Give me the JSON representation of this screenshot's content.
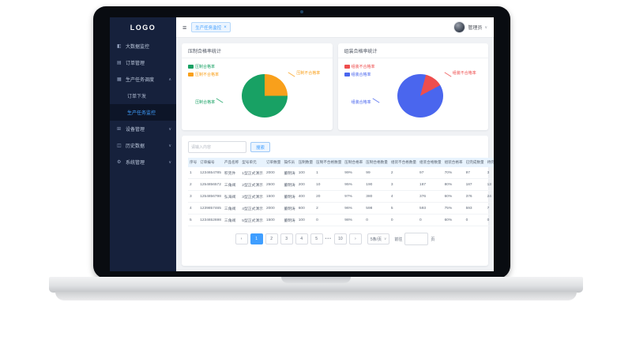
{
  "sidebar": {
    "logo": "LOGO",
    "items": [
      {
        "id": "bigdata",
        "label": "大数据监控",
        "icon": "monitor-icon"
      },
      {
        "id": "orders",
        "label": "订单管理",
        "icon": "order-icon"
      },
      {
        "id": "production-schedule",
        "label": "生产任务调度",
        "icon": "task-icon",
        "chevron": "up"
      },
      {
        "id": "order-dispatch",
        "label": "订单下发",
        "sub": true
      },
      {
        "id": "task-monitor",
        "label": "生产任务监控",
        "sub": true,
        "active": true
      },
      {
        "id": "device",
        "label": "设备管理",
        "icon": "device-icon",
        "chevron": "down"
      },
      {
        "id": "history",
        "label": "历史数据",
        "icon": "history-icon",
        "chevron": "down"
      },
      {
        "id": "system",
        "label": "系统管理",
        "icon": "system-icon",
        "chevron": "down"
      }
    ]
  },
  "icons": {
    "monitor-icon": "◧",
    "order-icon": "▤",
    "task-icon": "▦",
    "device-icon": "⊞",
    "history-icon": "◫",
    "system-icon": "⚙",
    "hamburger-icon": "≡",
    "chevron-up": "∧",
    "chevron-down": "∨",
    "close-icon": "×",
    "prev-icon": "‹",
    "next-icon": "›",
    "select-chevron": "∨"
  },
  "topbar": {
    "tag_label": "生产任务监控",
    "username": "管理员"
  },
  "colors": {
    "accent": "#3f9eff",
    "sidebar": "#16213c",
    "green": "#18a164",
    "orange": "#f9a01b",
    "red": "#ee4e4e",
    "blue": "#4a66ee"
  },
  "chart_data": [
    {
      "type": "pie",
      "title": "压制合格率统计",
      "legend_position": "top-left",
      "start_deg": 0,
      "slices": [
        {
          "label": "压制不合格率",
          "value": 25,
          "color": "#f9a01b"
        },
        {
          "label": "压制合格率",
          "value": 75,
          "color": "#18a164"
        }
      ],
      "legend": [
        {
          "label": "压制合格率",
          "color": "#18a164"
        },
        {
          "label": "压制不合格率",
          "color": "#f9a01b"
        }
      ]
    },
    {
      "type": "pie",
      "title": "组装合格率统计",
      "legend_position": "top-left",
      "start_deg": 15,
      "slices": [
        {
          "label": "组装不合格率",
          "value": 13,
          "color": "#ee4e4e"
        },
        {
          "label": "组装合格率",
          "value": 87,
          "color": "#4a66ee"
        }
      ],
      "legend": [
        {
          "label": "组装不合格率",
          "color": "#ee4e4e"
        },
        {
          "label": "组装合格率",
          "color": "#4a66ee"
        }
      ]
    }
  ],
  "search": {
    "placeholder": "请输入内容",
    "button": "搜索"
  },
  "table": {
    "columns": [
      "序号",
      "订单编号",
      "产品名称",
      "型号单元",
      "订单数量",
      "操作员",
      "压制数量",
      "压制不合格数量",
      "压制合格率",
      "压制合格数量",
      "组装不合格数量",
      "组装合格数量",
      "组装合格率",
      "已完成数量",
      "待完成数量"
    ],
    "rows": [
      [
        "1",
        "1234654785",
        "积克件",
        "1型正式演示",
        "2000",
        "董明涛",
        "100",
        "1",
        "99%",
        "99",
        "2",
        "97",
        "70%",
        "97",
        "3"
      ],
      [
        "2",
        "1254856572",
        "三角阀",
        "2型正式演示",
        "2500",
        "董明涛",
        "200",
        "10",
        "95%",
        "190",
        "3",
        "187",
        "80%",
        "187",
        "13"
      ],
      [
        "3",
        "1254856798",
        "弘海阀",
        "3型正式演示",
        "1500",
        "董明涛",
        "400",
        "20",
        "97%",
        "380",
        "4",
        "376",
        "60%",
        "376",
        "24"
      ],
      [
        "4",
        "1239857465",
        "三角阀",
        "4型正式演示",
        "2000",
        "董明涛",
        "600",
        "2",
        "96%",
        "598",
        "5",
        "593",
        "75%",
        "593",
        "7"
      ],
      [
        "5",
        "1234652698",
        "三角阀",
        "5型正式演示",
        "1500",
        "董明涛",
        "100",
        "0",
        "98%",
        "0",
        "0",
        "0",
        "60%",
        "0",
        "0"
      ]
    ]
  },
  "pagination": {
    "pages": [
      "1",
      "2",
      "3",
      "4",
      "5"
    ],
    "active": "1",
    "ellipsis": "•••",
    "last": "10",
    "size": "5条/页",
    "goto_label": "前往",
    "goto_value": "",
    "page_label": "页"
  }
}
